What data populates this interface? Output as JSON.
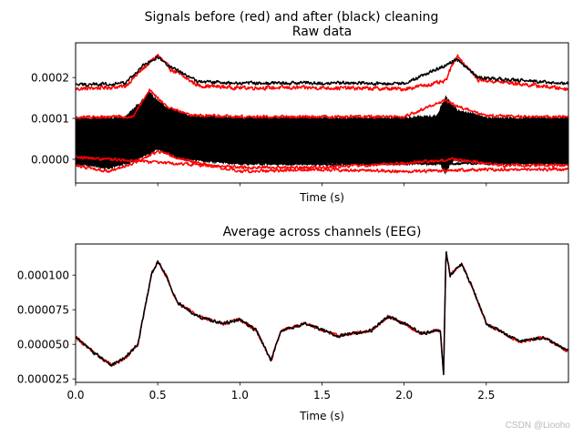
{
  "figure": {
    "suptitle": "Signals before (red) and after (black) cleaning",
    "watermark": "CSDN @Liooho",
    "colors": {
      "before": "#ff0000",
      "after": "#000000",
      "average": "#000000"
    }
  },
  "chart_data": [
    {
      "type": "line",
      "title": "Raw data",
      "xlabel": "Time (s)",
      "ylabel": "",
      "xlim": [
        0,
        3.0
      ],
      "ylim": [
        -5.8e-05,
        0.000285
      ],
      "xticks": [
        0,
        0.5,
        1.0,
        1.5,
        2.0,
        2.5
      ],
      "xtick_labels_shown": false,
      "yticks": [
        0.0,
        0.0001,
        0.0002
      ],
      "ytick_labels": [
        "0.0000",
        "0.0001",
        "0.0002"
      ],
      "legend": "none",
      "band_series": {
        "name": "bulk channels (before red / after black)",
        "lower_anchors": [
          [
            0,
            -1e-05
          ],
          [
            0.2,
            -2e-05
          ],
          [
            0.35,
            -5e-06
          ],
          [
            0.5,
            2.5e-05
          ],
          [
            0.65,
            0.0
          ],
          [
            1.0,
            -1e-05
          ],
          [
            1.5,
            -1e-05
          ],
          [
            2.0,
            -1e-05
          ],
          [
            2.22,
            -1e-05
          ],
          [
            2.25,
            -3e-05
          ],
          [
            2.3,
            0.0
          ],
          [
            2.5,
            -1e-05
          ],
          [
            3.0,
            -1e-05
          ]
        ],
        "upper_anchors": [
          [
            0,
            0.0001
          ],
          [
            0.3,
            0.0001
          ],
          [
            0.45,
            0.00016
          ],
          [
            0.55,
            0.000125
          ],
          [
            0.7,
            0.000105
          ],
          [
            1.0,
            0.0001
          ],
          [
            1.5,
            0.0001
          ],
          [
            2.0,
            0.0001
          ],
          [
            2.2,
            0.000105
          ],
          [
            2.25,
            0.00015
          ],
          [
            2.32,
            0.00012
          ],
          [
            2.5,
            0.0001
          ],
          [
            3.0,
            0.0001
          ]
        ]
      },
      "series": [
        {
          "name": "top channel before",
          "color": "#ff0000",
          "noise": 6.5e-06,
          "anchors": [
            [
              0,
              0.000172
            ],
            [
              0.3,
              0.000178
            ],
            [
              0.42,
              0.000225
            ],
            [
              0.5,
              0.000255
            ],
            [
              0.58,
              0.00022
            ],
            [
              0.75,
              0.00018
            ],
            [
              1.0,
              0.000175
            ],
            [
              1.5,
              0.000175
            ],
            [
              2.0,
              0.000172
            ],
            [
              2.25,
              0.00019
            ],
            [
              2.32,
              0.000255
            ],
            [
              2.45,
              0.000195
            ],
            [
              3.0,
              0.000172
            ]
          ]
        },
        {
          "name": "top channel after",
          "color": "#000000",
          "noise": 5.5e-06,
          "anchors": [
            [
              0,
              0.000182
            ],
            [
              0.3,
              0.000186
            ],
            [
              0.42,
              0.000232
            ],
            [
              0.5,
              0.00025
            ],
            [
              0.58,
              0.000225
            ],
            [
              0.75,
              0.00019
            ],
            [
              1.0,
              0.000186
            ],
            [
              1.5,
              0.000187
            ],
            [
              2.0,
              0.000185
            ],
            [
              2.25,
              0.00023
            ],
            [
              2.32,
              0.000245
            ],
            [
              2.45,
              0.0002
            ],
            [
              3.0,
              0.000185
            ]
          ]
        },
        {
          "name": "lower channel 1 before",
          "color": "#ff0000",
          "noise": 5e-06,
          "anchors": [
            [
              0,
              -1.5e-05
            ],
            [
              0.2,
              -3e-05
            ],
            [
              0.35,
              -1e-05
            ],
            [
              0.5,
              2e-05
            ],
            [
              0.7,
              -5e-06
            ],
            [
              1.0,
              -3e-05
            ],
            [
              1.5,
              -2.5e-05
            ],
            [
              2.0,
              -3e-05
            ],
            [
              2.5,
              -2.5e-05
            ],
            [
              3.0,
              -2.5e-05
            ]
          ]
        },
        {
          "name": "lower channel 1 after",
          "color": "#000000",
          "noise": 4.5e-06,
          "anchors": [
            [
              0,
              -5e-06
            ],
            [
              0.2,
              -2e-05
            ],
            [
              0.35,
              0.0
            ],
            [
              0.5,
              3e-05
            ],
            [
              0.7,
              5e-06
            ],
            [
              1.0,
              -1e-05
            ],
            [
              1.5,
              -1.2e-05
            ],
            [
              2.0,
              -1e-05
            ],
            [
              2.5,
              -1e-05
            ],
            [
              3.0,
              -8e-06
            ]
          ]
        },
        {
          "name": "lower channel 2 before",
          "color": "#ff0000",
          "noise": 5e-06,
          "anchors": [
            [
              0,
              5e-06
            ],
            [
              0.6,
              -1e-05
            ],
            [
              1.0,
              -2e-05
            ],
            [
              1.5,
              -2e-05
            ],
            [
              2.0,
              -1e-05
            ],
            [
              2.3,
              0.0
            ],
            [
              2.6,
              -1.5e-05
            ],
            [
              3.0,
              -1.5e-05
            ]
          ]
        },
        {
          "name": "upper band channel before",
          "color": "#ff0000",
          "noise": 5e-06,
          "anchors": [
            [
              0,
              0.000102
            ],
            [
              0.35,
              0.000105
            ],
            [
              0.45,
              0.00017
            ],
            [
              0.55,
              0.00013
            ],
            [
              0.7,
              0.000108
            ],
            [
              1.0,
              0.000104
            ],
            [
              1.5,
              0.000104
            ],
            [
              2.0,
              0.000104
            ],
            [
              2.25,
              0.000145
            ],
            [
              2.32,
              0.00013
            ],
            [
              2.5,
              0.000106
            ],
            [
              3.0,
              0.000104
            ]
          ]
        }
      ]
    },
    {
      "type": "line",
      "title": "Average across channels (EEG)",
      "xlabel": "Time (s)",
      "ylabel": "",
      "xlim": [
        0,
        3.0
      ],
      "ylim": [
        2.25e-05,
        0.0001225
      ],
      "xticks": [
        0,
        0.5,
        1.0,
        1.5,
        2.0,
        2.5
      ],
      "xtick_labels": [
        "0.0",
        "0.5",
        "1.0",
        "1.5",
        "2.0",
        "2.5"
      ],
      "yticks": [
        2.5e-05,
        5e-05,
        7.5e-05,
        0.0001
      ],
      "ytick_labels": [
        "0.000025",
        "0.000050",
        "0.000075",
        "0.000100"
      ],
      "legend": "none",
      "series": [
        {
          "name": "average before",
          "color": "#ff0000",
          "noise": 1.6e-06,
          "anchors": [
            [
              0,
              5.5e-05
            ],
            [
              0.05,
              5e-05
            ],
            [
              0.1,
              4.5e-05
            ],
            [
              0.22,
              3.5e-05
            ],
            [
              0.3,
              4e-05
            ],
            [
              0.38,
              5e-05
            ],
            [
              0.42,
              7.5e-05
            ],
            [
              0.46,
              0.0001
            ],
            [
              0.5,
              0.00011
            ],
            [
              0.55,
              0.0001
            ],
            [
              0.62,
              8e-05
            ],
            [
              0.75,
              7e-05
            ],
            [
              0.9,
              6.5e-05
            ],
            [
              1.0,
              6.8e-05
            ],
            [
              1.1,
              6e-05
            ],
            [
              1.19,
              3.8e-05
            ],
            [
              1.25,
              6e-05
            ],
            [
              1.4,
              6.5e-05
            ],
            [
              1.6,
              5.6e-05
            ],
            [
              1.8,
              6e-05
            ],
            [
              1.9,
              7e-05
            ],
            [
              2.0,
              6.5e-05
            ],
            [
              2.1,
              5.8e-05
            ],
            [
              2.22,
              6e-05
            ],
            [
              2.24,
              2.8e-05
            ],
            [
              2.255,
              0.000118
            ],
            [
              2.28,
              0.0001
            ],
            [
              2.35,
              0.000108
            ],
            [
              2.42,
              9e-05
            ],
            [
              2.5,
              6.5e-05
            ],
            [
              2.7,
              5.2e-05
            ],
            [
              2.85,
              5.5e-05
            ],
            [
              3.0,
              4.5e-05
            ]
          ]
        },
        {
          "name": "average after",
          "color": "#000000",
          "noise": 1.6e-06,
          "anchors": [
            [
              0,
              5.5e-05
            ],
            [
              0.05,
              5e-05
            ],
            [
              0.1,
              4.5e-05
            ],
            [
              0.22,
              3.5e-05
            ],
            [
              0.3,
              4e-05
            ],
            [
              0.38,
              5e-05
            ],
            [
              0.42,
              7.5e-05
            ],
            [
              0.46,
              0.0001
            ],
            [
              0.5,
              0.00011
            ],
            [
              0.55,
              0.0001
            ],
            [
              0.62,
              8e-05
            ],
            [
              0.75,
              7e-05
            ],
            [
              0.9,
              6.5e-05
            ],
            [
              1.0,
              6.8e-05
            ],
            [
              1.1,
              6e-05
            ],
            [
              1.19,
              3.8e-05
            ],
            [
              1.25,
              6e-05
            ],
            [
              1.4,
              6.5e-05
            ],
            [
              1.6,
              5.6e-05
            ],
            [
              1.8,
              6e-05
            ],
            [
              1.9,
              7e-05
            ],
            [
              2.0,
              6.5e-05
            ],
            [
              2.1,
              5.8e-05
            ],
            [
              2.22,
              6e-05
            ],
            [
              2.24,
              2.8e-05
            ],
            [
              2.255,
              0.000118
            ],
            [
              2.28,
              0.0001
            ],
            [
              2.35,
              0.000108
            ],
            [
              2.42,
              9e-05
            ],
            [
              2.5,
              6.5e-05
            ],
            [
              2.7,
              5.2e-05
            ],
            [
              2.85,
              5.5e-05
            ],
            [
              3.0,
              4.5e-05
            ]
          ]
        }
      ]
    }
  ]
}
